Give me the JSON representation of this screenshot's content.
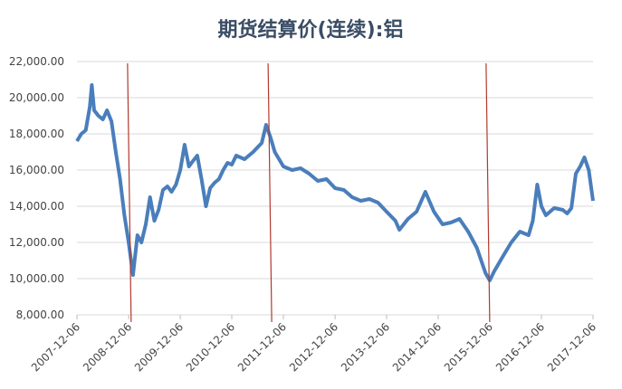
{
  "chart_data": {
    "type": "line",
    "title": "期货结算价(连续):铝",
    "x": [
      "2007-12-06",
      "2008-01-06",
      "2008-02-06",
      "2008-03-06",
      "2008-03-20",
      "2008-04-06",
      "2008-05-06",
      "2008-06-06",
      "2008-07-06",
      "2008-08-06",
      "2008-09-06",
      "2008-10-06",
      "2008-11-06",
      "2008-12-06",
      "2009-01-06",
      "2009-02-06",
      "2009-03-06",
      "2009-04-06",
      "2009-05-06",
      "2009-06-06",
      "2009-07-06",
      "2009-08-06",
      "2009-09-06",
      "2009-10-06",
      "2009-11-06",
      "2009-12-06",
      "2010-01-06",
      "2010-02-06",
      "2010-03-06",
      "2010-04-06",
      "2010-05-06",
      "2010-06-06",
      "2010-07-06",
      "2010-08-06",
      "2010-09-06",
      "2010-10-06",
      "2010-11-06",
      "2010-12-06",
      "2011-01-06",
      "2011-03-06",
      "2011-05-06",
      "2011-07-06",
      "2011-08-06",
      "2011-09-06",
      "2011-10-06",
      "2011-12-06",
      "2012-02-06",
      "2012-04-06",
      "2012-06-06",
      "2012-08-06",
      "2012-10-06",
      "2012-12-06",
      "2013-02-06",
      "2013-04-06",
      "2013-06-06",
      "2013-08-06",
      "2013-10-06",
      "2013-12-06",
      "2014-02-06",
      "2014-03-06",
      "2014-05-06",
      "2014-07-06",
      "2014-09-06",
      "2014-11-06",
      "2015-01-06",
      "2015-03-06",
      "2015-05-06",
      "2015-07-06",
      "2015-09-06",
      "2015-11-06",
      "2015-12-06",
      "2016-01-06",
      "2016-03-06",
      "2016-05-06",
      "2016-07-06",
      "2016-09-06",
      "2016-10-06",
      "2016-11-06",
      "2016-12-06",
      "2017-01-06",
      "2017-03-06",
      "2017-05-06",
      "2017-06-06",
      "2017-07-06",
      "2017-08-06",
      "2017-09-06",
      "2017-10-06",
      "2017-11-06",
      "2017-12-06"
    ],
    "series": [
      {
        "color": "#4a7ebb",
        "values": [
          17600,
          18000,
          18200,
          19500,
          20700,
          19300,
          19000,
          18800,
          19300,
          18700,
          17000,
          15500,
          13500,
          12000,
          10200,
          12400,
          12000,
          13000,
          14500,
          13200,
          13800,
          14900,
          15100,
          14800,
          15200,
          16000,
          17400,
          16200,
          16500,
          16800,
          15500,
          14000,
          15000,
          15300,
          15500,
          16000,
          16400,
          16300,
          16800,
          16600,
          17000,
          17500,
          18500,
          17800,
          17000,
          16200,
          16000,
          16100,
          15800,
          15400,
          15500,
          15000,
          14900,
          14500,
          14300,
          14400,
          14200,
          13700,
          13200,
          12700,
          13300,
          13700,
          14800,
          13700,
          13000,
          13100,
          13300,
          12600,
          11700,
          10300,
          9900,
          10400,
          11200,
          12000,
          12600,
          12400,
          13200,
          15200,
          14000,
          13500,
          13900,
          13800,
          13600,
          13900,
          15800,
          16200,
          16700,
          16000,
          14300
        ]
      }
    ],
    "xlim": [
      "2007-12-06",
      "2017-12-06"
    ],
    "xticks": [
      "2007-12-06",
      "2008-12-06",
      "2009-12-06",
      "2010-12-06",
      "2011-12-06",
      "2012-12-06",
      "2013-12-06",
      "2014-12-06",
      "2015-12-06",
      "2016-12-06",
      "2017-12-06"
    ],
    "ylim": [
      8000,
      22000
    ],
    "yticks": [
      {
        "value": 8000,
        "label": "8,000.00"
      },
      {
        "value": 10000,
        "label": "10,000.00"
      },
      {
        "value": 12000,
        "label": "12,000.00"
      },
      {
        "value": 14000,
        "label": "14,000.00"
      },
      {
        "value": 16000,
        "label": "16,000.00"
      },
      {
        "value": 18000,
        "label": "18,000.00"
      },
      {
        "value": 20000,
        "label": "20,000.00"
      },
      {
        "value": 22000,
        "label": "22,000.00"
      }
    ],
    "grid": true,
    "vlines": {
      "color": "#b03a2e",
      "x": [
        "2008-11-28",
        "2011-08-20",
        "2015-11-10"
      ]
    }
  }
}
